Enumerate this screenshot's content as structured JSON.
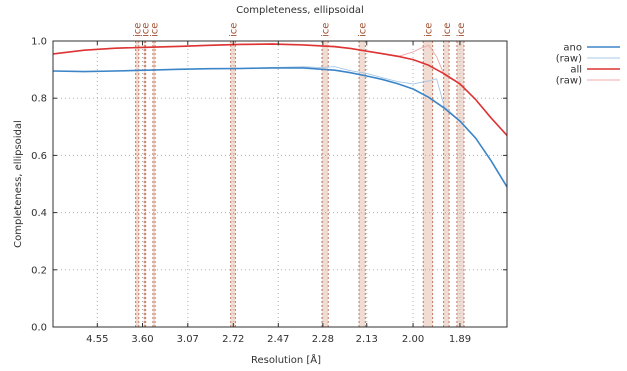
{
  "chart_data": {
    "type": "line",
    "title": "Completeness, ellipsoidal",
    "xlabel": "Resolution [Å]",
    "ylabel": "Completeness, ellipsoidal",
    "ylim": [
      0.0,
      1.0
    ],
    "yticks": [
      "0.0",
      "0.2",
      "0.4",
      "0.6",
      "0.8",
      "1.0"
    ],
    "xticks": [
      "4.55",
      "3.60",
      "3.07",
      "2.72",
      "2.47",
      "2.28",
      "2.13",
      "2.00",
      "1.89"
    ],
    "x_axis_unit": "1/d² (Å⁻²)",
    "xlim": [
      0.02,
      0.31
    ],
    "grid": true,
    "legend_position": "top-right",
    "ice_label": "ice",
    "ice_rings": [
      {
        "lo": 0.0728,
        "hi": 0.0748
      },
      {
        "lo": 0.0783,
        "hi": 0.0792
      },
      {
        "lo": 0.0838,
        "hi": 0.0852
      },
      {
        "lo": 0.1335,
        "hi": 0.1365
      },
      {
        "lo": 0.1918,
        "hi": 0.1958
      },
      {
        "lo": 0.2155,
        "hi": 0.2195
      },
      {
        "lo": 0.2565,
        "hi": 0.2625
      },
      {
        "lo": 0.2695,
        "hi": 0.273
      },
      {
        "lo": 0.278,
        "hi": 0.2825
      }
    ],
    "series": [
      {
        "name": "ano",
        "color": "#3c85c8",
        "width": 1.6,
        "x": [
          0.02,
          0.04,
          0.06,
          0.08,
          0.1,
          0.12,
          0.14,
          0.16,
          0.18,
          0.2,
          0.21,
          0.22,
          0.23,
          0.24,
          0.25,
          0.26,
          0.27,
          0.28,
          0.29,
          0.3,
          0.31
        ],
        "values": [
          0.895,
          0.893,
          0.895,
          0.898,
          0.901,
          0.903,
          0.904,
          0.906,
          0.906,
          0.898,
          0.889,
          0.878,
          0.866,
          0.851,
          0.832,
          0.803,
          0.765,
          0.72,
          0.66,
          0.58,
          0.49
        ]
      },
      {
        "name": "(raw)",
        "color": "#a8c8e6",
        "width": 0.9,
        "x": [
          0.02,
          0.04,
          0.06,
          0.08,
          0.1,
          0.12,
          0.14,
          0.16,
          0.18,
          0.19,
          0.2,
          0.21,
          0.22,
          0.23,
          0.24,
          0.25,
          0.26,
          0.265,
          0.27,
          0.28,
          0.29,
          0.3,
          0.31
        ],
        "values": [
          0.895,
          0.893,
          0.896,
          0.898,
          0.901,
          0.903,
          0.905,
          0.907,
          0.91,
          0.907,
          0.91,
          0.896,
          0.887,
          0.872,
          0.858,
          0.85,
          0.86,
          0.868,
          0.77,
          0.72,
          0.66,
          0.58,
          0.49
        ]
      },
      {
        "name": "all",
        "color": "#dd3333",
        "width": 1.6,
        "x": [
          0.02,
          0.04,
          0.06,
          0.08,
          0.1,
          0.12,
          0.14,
          0.16,
          0.18,
          0.2,
          0.21,
          0.22,
          0.23,
          0.24,
          0.25,
          0.26,
          0.27,
          0.28,
          0.29,
          0.3,
          0.31
        ],
        "values": [
          0.955,
          0.968,
          0.975,
          0.978,
          0.981,
          0.985,
          0.988,
          0.989,
          0.986,
          0.98,
          0.974,
          0.965,
          0.956,
          0.947,
          0.935,
          0.915,
          0.885,
          0.85,
          0.795,
          0.73,
          0.67
        ]
      },
      {
        "name": "(raw)",
        "color": "#f0a8a8",
        "width": 0.9,
        "x": [
          0.02,
          0.04,
          0.06,
          0.08,
          0.1,
          0.12,
          0.14,
          0.16,
          0.18,
          0.2,
          0.21,
          0.22,
          0.23,
          0.24,
          0.25,
          0.255,
          0.26,
          0.265,
          0.27,
          0.28,
          0.29,
          0.3,
          0.31
        ],
        "values": [
          0.955,
          0.968,
          0.976,
          0.979,
          0.982,
          0.986,
          0.99,
          0.991,
          0.988,
          0.982,
          0.974,
          0.963,
          0.955,
          0.945,
          0.962,
          0.975,
          0.985,
          0.945,
          0.88,
          0.85,
          0.795,
          0.73,
          0.67
        ]
      }
    ]
  }
}
